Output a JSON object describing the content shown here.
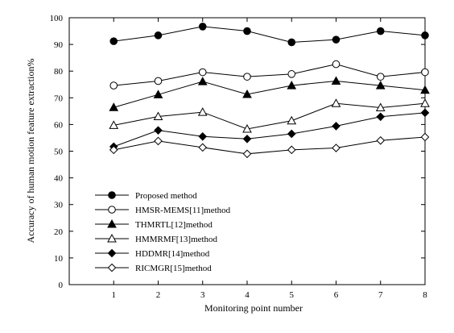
{
  "chart_data": {
    "type": "line",
    "title": "",
    "xlabel": "Monitoring point number",
    "ylabel": "Accuracy of human motion feature extraction%",
    "x": [
      1,
      2,
      3,
      4,
      5,
      6,
      7,
      8
    ],
    "x_tick_labels": [
      "1",
      "2",
      "3",
      "4",
      "5",
      "6",
      "7",
      "8"
    ],
    "xlim": [
      0,
      8
    ],
    "ylim": [
      0,
      100
    ],
    "y_ticks": [
      0,
      10,
      20,
      30,
      40,
      50,
      60,
      70,
      80,
      90,
      100
    ],
    "y_tick_labels": [
      "0",
      "10",
      "20",
      "30",
      "40",
      "50",
      "60",
      "70",
      "80",
      "90",
      "100"
    ],
    "grid": false,
    "legend_position": "lower-left",
    "series": [
      {
        "name": "Proposed method",
        "marker": "circle-filled",
        "color": "#000000",
        "values": [
          91.2,
          93.4,
          96.7,
          95.0,
          90.8,
          91.8,
          95.0,
          93.4
        ]
      },
      {
        "name": "HMSR-MEMS[11]method",
        "marker": "circle-open",
        "color": "#000000",
        "values": [
          74.6,
          76.3,
          79.6,
          77.9,
          78.9,
          82.6,
          77.9,
          79.6
        ]
      },
      {
        "name": "THMRTL[12]method",
        "marker": "triangle-filled",
        "color": "#000000",
        "values": [
          66.4,
          71.2,
          76.1,
          71.3,
          74.6,
          76.3,
          74.6,
          72.9
        ]
      },
      {
        "name": "HMMRMF[13]method",
        "marker": "triangle-open",
        "color": "#000000",
        "values": [
          59.7,
          63.0,
          64.6,
          58.3,
          61.4,
          67.9,
          66.3,
          67.9
        ]
      },
      {
        "name": "HDDMR[14]method",
        "marker": "diamond-filled",
        "color": "#000000",
        "values": [
          51.7,
          57.8,
          55.5,
          54.6,
          56.5,
          59.4,
          62.9,
          64.4
        ]
      },
      {
        "name": "RICMGR[15]method",
        "marker": "diamond-open",
        "color": "#000000",
        "values": [
          50.5,
          53.8,
          51.4,
          49.0,
          50.5,
          51.2,
          54.0,
          55.3
        ]
      }
    ]
  }
}
